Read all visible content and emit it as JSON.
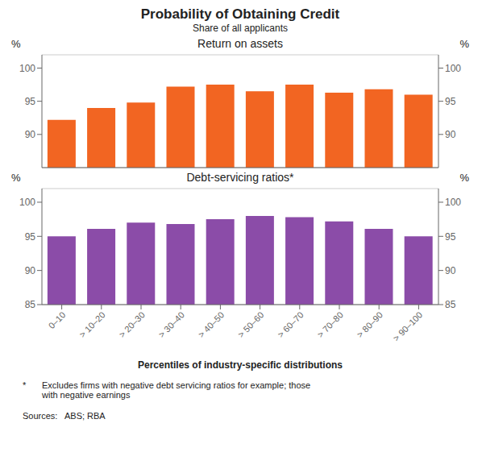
{
  "title": "Probability of Obtaining Credit",
  "subtitle": "Share of all applicants",
  "xlabel": "Percentiles of industry-specific distributions",
  "annotations": [
    "*",
    "Excludes firms with negative debt servicing ratios for example; those\nwith negative earnings",
    "Sources:   ABS; RBA"
  ],
  "chart_data": [
    {
      "type": "bar",
      "title": "Return on assets",
      "ylabel": "%",
      "categories": [
        "0–10",
        "> 10–20",
        "> 20–30",
        "> 30–40",
        "> 40–50",
        "> 50–60",
        "> 60–70",
        "> 70–80",
        "> 80–90",
        "> 90–100"
      ],
      "values": [
        92.2,
        94.0,
        94.8,
        97.2,
        97.5,
        96.5,
        97.5,
        96.3,
        96.8,
        96.0
      ],
      "color": "#F26522",
      "ylim": [
        85,
        102
      ],
      "yticks": [
        90,
        95,
        100
      ],
      "grid": true,
      "tick_labels": "y"
    },
    {
      "type": "bar",
      "title": "Debt-servicing ratios*",
      "ylabel": "%",
      "categories": [
        "0–10",
        "> 10–20",
        "> 20–30",
        "> 30–40",
        "> 40–50",
        "> 50–60",
        "> 60–70",
        "> 70–80",
        "> 80–90",
        "> 90–100"
      ],
      "values": [
        95.0,
        96.1,
        97.0,
        96.8,
        97.5,
        98.0,
        97.8,
        97.2,
        96.1,
        95.0
      ],
      "color": "#8B4CA8",
      "ylim": [
        85,
        102
      ],
      "yticks": [
        85,
        90,
        95,
        100
      ],
      "grid": true
    }
  ]
}
